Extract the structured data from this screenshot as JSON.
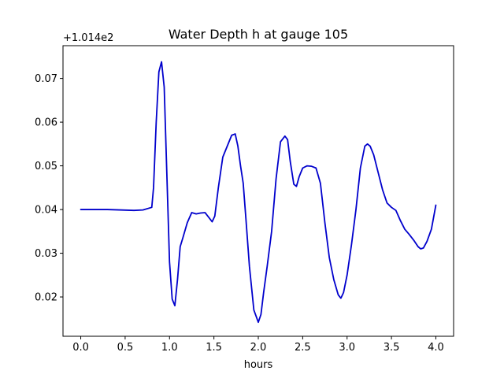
{
  "chart_data": {
    "type": "line",
    "title": "Water Depth h at gauge 105",
    "xlabel": "hours",
    "ylabel": "",
    "offset_text": "+1.014e2",
    "xlim": [
      -0.2,
      4.2
    ],
    "ylim": [
      0.011,
      0.0775
    ],
    "xticks": [
      0.0,
      0.5,
      1.0,
      1.5,
      2.0,
      2.5,
      3.0,
      3.5,
      4.0
    ],
    "xtick_labels": [
      "0.0",
      "0.5",
      "1.0",
      "1.5",
      "2.0",
      "2.5",
      "3.0",
      "3.5",
      "4.0"
    ],
    "yticks": [
      0.02,
      0.03,
      0.04,
      0.05,
      0.06,
      0.07
    ],
    "ytick_labels": [
      "0.02",
      "0.03",
      "0.04",
      "0.05",
      "0.06",
      "0.07"
    ],
    "grid": false,
    "series": [
      {
        "color": "#0000cc",
        "x": [
          0.0,
          0.3,
          0.6,
          0.7,
          0.8,
          0.82,
          0.85,
          0.88,
          0.91,
          0.94,
          0.97,
          1.0,
          1.03,
          1.06,
          1.09,
          1.12,
          1.15,
          1.2,
          1.25,
          1.3,
          1.35,
          1.4,
          1.45,
          1.48,
          1.51,
          1.55,
          1.6,
          1.65,
          1.7,
          1.74,
          1.77,
          1.8,
          1.83,
          1.86,
          1.9,
          1.95,
          2.0,
          2.03,
          2.06,
          2.1,
          2.15,
          2.2,
          2.25,
          2.3,
          2.33,
          2.36,
          2.4,
          2.43,
          2.46,
          2.5,
          2.55,
          2.6,
          2.65,
          2.7,
          2.75,
          2.8,
          2.85,
          2.9,
          2.93,
          2.96,
          3.0,
          3.05,
          3.1,
          3.15,
          3.2,
          3.23,
          3.26,
          3.3,
          3.35,
          3.4,
          3.45,
          3.5,
          3.55,
          3.6,
          3.65,
          3.7,
          3.75,
          3.8,
          3.83,
          3.86,
          3.9,
          3.95,
          4.0
        ],
        "y": [
          0.04,
          0.04,
          0.0398,
          0.0399,
          0.0405,
          0.045,
          0.06,
          0.0715,
          0.0738,
          0.068,
          0.048,
          0.028,
          0.0195,
          0.018,
          0.024,
          0.0315,
          0.0335,
          0.037,
          0.0393,
          0.039,
          0.0392,
          0.0393,
          0.038,
          0.0372,
          0.0385,
          0.045,
          0.052,
          0.0545,
          0.057,
          0.0573,
          0.0545,
          0.05,
          0.046,
          0.038,
          0.027,
          0.017,
          0.0142,
          0.016,
          0.021,
          0.027,
          0.035,
          0.047,
          0.0555,
          0.0568,
          0.056,
          0.051,
          0.0458,
          0.0453,
          0.0475,
          0.0495,
          0.05,
          0.0499,
          0.0495,
          0.046,
          0.037,
          0.029,
          0.024,
          0.0205,
          0.0197,
          0.021,
          0.025,
          0.032,
          0.04,
          0.0495,
          0.0545,
          0.055,
          0.0545,
          0.0525,
          0.0485,
          0.0445,
          0.0415,
          0.0405,
          0.0398,
          0.0375,
          0.0355,
          0.0343,
          0.033,
          0.0315,
          0.031,
          0.0312,
          0.0327,
          0.0355,
          0.041
        ]
      }
    ]
  }
}
